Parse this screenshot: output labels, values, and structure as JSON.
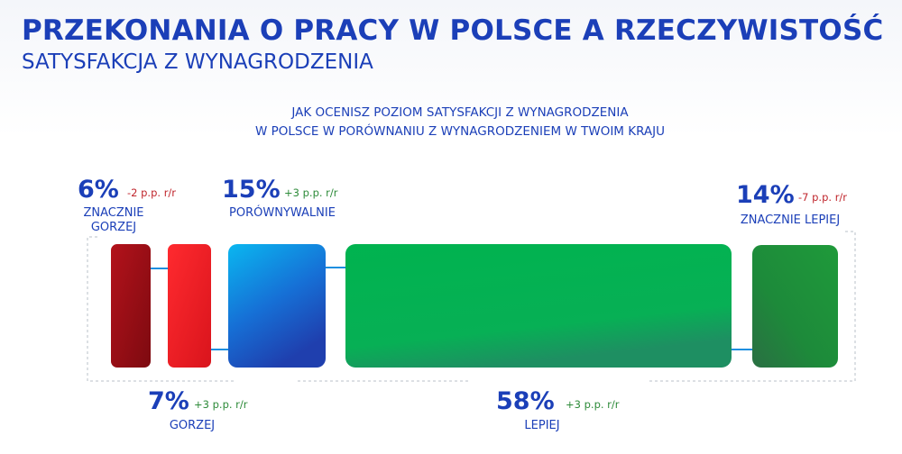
{
  "header": {
    "title": "PRZEKONANIA O PRACY W POLSCE A RZECZYWISTOŚĆ",
    "subtitle": "SATYSFAKCJA Z WYNAGRODZENIA"
  },
  "question": {
    "line1": "JAK OCENISZ POZIOM SATYSFAKCJI Z WYNAGRODZENIA",
    "line2": "W POLSCE W PORÓWNANIU Z WYNAGRODZENIEM W TWOIM KRAJU"
  },
  "colors": {
    "title": "#1b3fb8",
    "negative_change": "#c0262d",
    "positive_change": "#2e8b3a",
    "dark_red": "#9a0c14",
    "red": "#ee1b24",
    "blue": "#1496e6",
    "green": "#00b050",
    "dark_green": "#1f8a3a",
    "connector": "#1d8fe0",
    "frame": "#b9c0ca"
  },
  "chart_data": {
    "type": "bar",
    "categories": [
      "ZNACZNIE GORZEJ",
      "GORZEJ",
      "PORÓWNYWALNIE",
      "LEPIEJ",
      "ZNACZNIE LEPIEJ"
    ],
    "values": [
      6,
      7,
      15,
      58,
      14
    ],
    "value_labels": [
      "6%",
      "7%",
      "15%",
      "58%",
      "14%"
    ],
    "changes": [
      "-2 p.p. r/r",
      "+3 p.p. r/r",
      "+3 p.p. r/r",
      "+3 p.p. r/r",
      "-7 p.p. r/r"
    ],
    "label_lines": [
      [
        "ZNACZNIE",
        "GORZEJ"
      ],
      [
        "GORZEJ"
      ],
      [
        "PORÓWNYWALNIE"
      ],
      [
        "LEPIEJ"
      ],
      [
        "ZNACZNIE LEPIEJ"
      ]
    ],
    "title": "JAK OCENISZ POZIOM SATYSFAKCJI Z WYNAGRODZENIA W POLSCE W PORÓWNANIU Z WYNAGRODZENIEM W TWOIM KRAJU"
  }
}
